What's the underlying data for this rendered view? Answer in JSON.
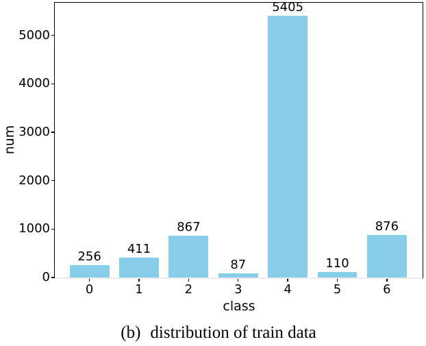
{
  "figure": {
    "background": "#ffffff"
  },
  "chart_data": {
    "type": "bar",
    "title": "",
    "categories": [
      "0",
      "1",
      "2",
      "3",
      "4",
      "5",
      "6"
    ],
    "values": [
      256,
      411,
      867,
      87,
      5405,
      110,
      876
    ],
    "value_labels": [
      "256",
      "411",
      "867",
      "87",
      "5405",
      "110",
      "876"
    ],
    "xlabel": "class",
    "ylabel": "num",
    "yticks": [
      0,
      1000,
      2000,
      3000,
      4000,
      5000
    ],
    "ylim": [
      0,
      5675
    ],
    "xlim": [
      -0.7,
      6.72
    ],
    "bar_width_fraction": 0.8,
    "grid": false,
    "legend": "none",
    "bar_color": "#87CEEB",
    "spine_color": "#000000",
    "bottom_spine_color": "#ebebeb",
    "text_color": "#000000"
  },
  "caption": {
    "label": "(b)",
    "text": "distribution of train data"
  }
}
